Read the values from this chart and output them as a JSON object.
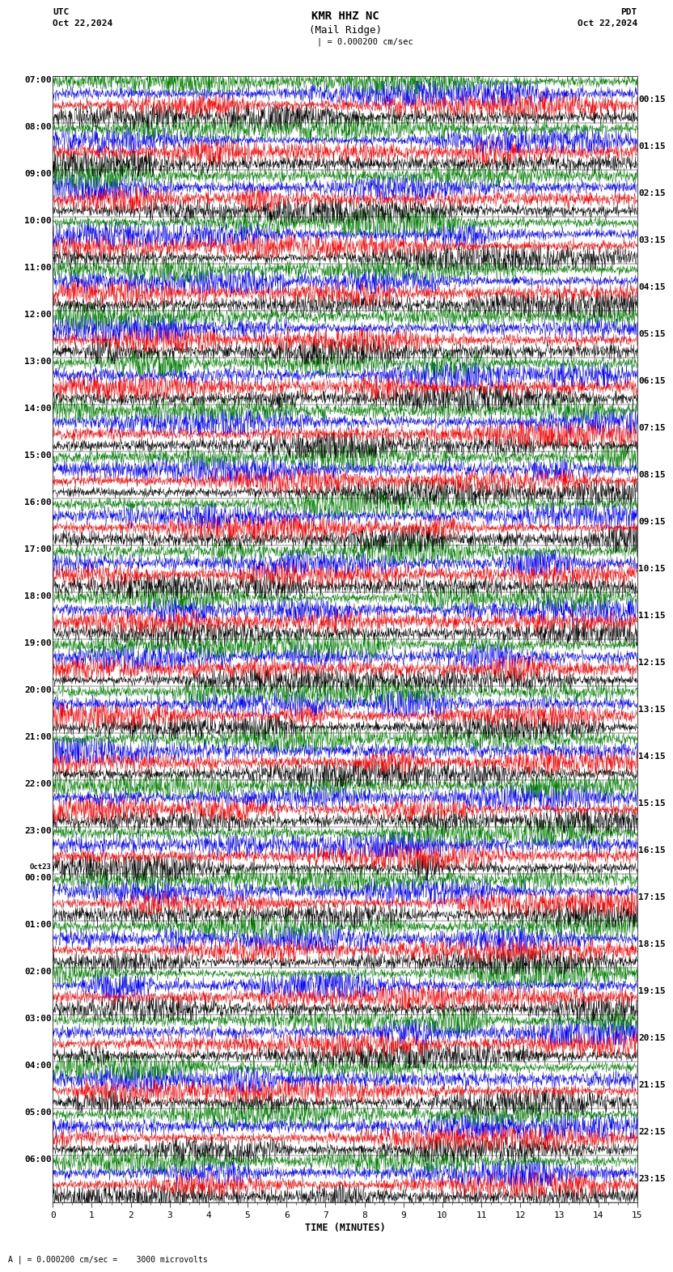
{
  "title_line1": "KMR HHZ NC",
  "title_line2": "(Mail Ridge)",
  "title_utc": "UTC",
  "title_pdt": "PDT",
  "date_left": "Oct 22,2024",
  "date_right": "Oct 22,2024",
  "scale_label": "| = 0.000200 cm/sec",
  "bottom_scale": "A | = 0.000200 cm/sec =    3000 microvolts",
  "xlabel": "TIME (MINUTES)",
  "trace_colors": [
    "black",
    "red",
    "blue",
    "green"
  ],
  "background": "white",
  "x_ticks": [
    0,
    1,
    2,
    3,
    4,
    5,
    6,
    7,
    8,
    9,
    10,
    11,
    12,
    13,
    14,
    15
  ],
  "left_times": [
    "07:00",
    "08:00",
    "09:00",
    "10:00",
    "11:00",
    "12:00",
    "13:00",
    "14:00",
    "15:00",
    "16:00",
    "17:00",
    "18:00",
    "19:00",
    "20:00",
    "21:00",
    "22:00",
    "23:00",
    "Oct23\n00:00",
    "01:00",
    "02:00",
    "03:00",
    "04:00",
    "05:00",
    "06:00"
  ],
  "right_times": [
    "00:15",
    "01:15",
    "02:15",
    "03:15",
    "04:15",
    "05:15",
    "06:15",
    "07:15",
    "08:15",
    "09:15",
    "10:15",
    "11:15",
    "12:15",
    "13:15",
    "14:15",
    "15:15",
    "16:15",
    "17:15",
    "18:15",
    "19:15",
    "20:15",
    "21:15",
    "22:15",
    "23:15"
  ],
  "num_rows": 24,
  "traces_per_row": 4,
  "fig_width": 8.5,
  "fig_height": 15.84,
  "dpi": 100
}
